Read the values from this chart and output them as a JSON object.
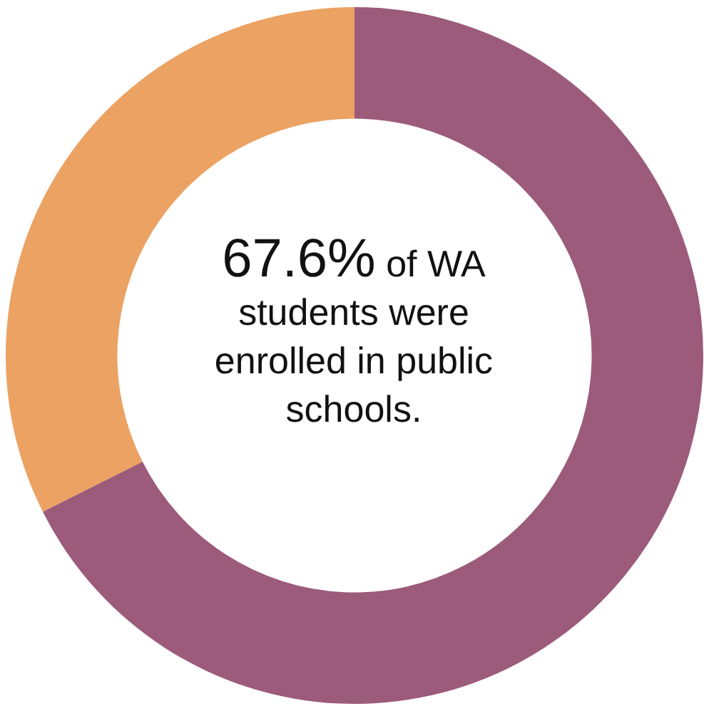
{
  "chart_data": {
    "type": "donut",
    "categories": [
      null,
      null
    ],
    "values": [
      67.6,
      32.4
    ],
    "colors": [
      "#9c5b7a",
      "#eba263"
    ],
    "annotations": [
      "67.6% of WA students were enrolled in public schools."
    ],
    "legend": false
  }
}
